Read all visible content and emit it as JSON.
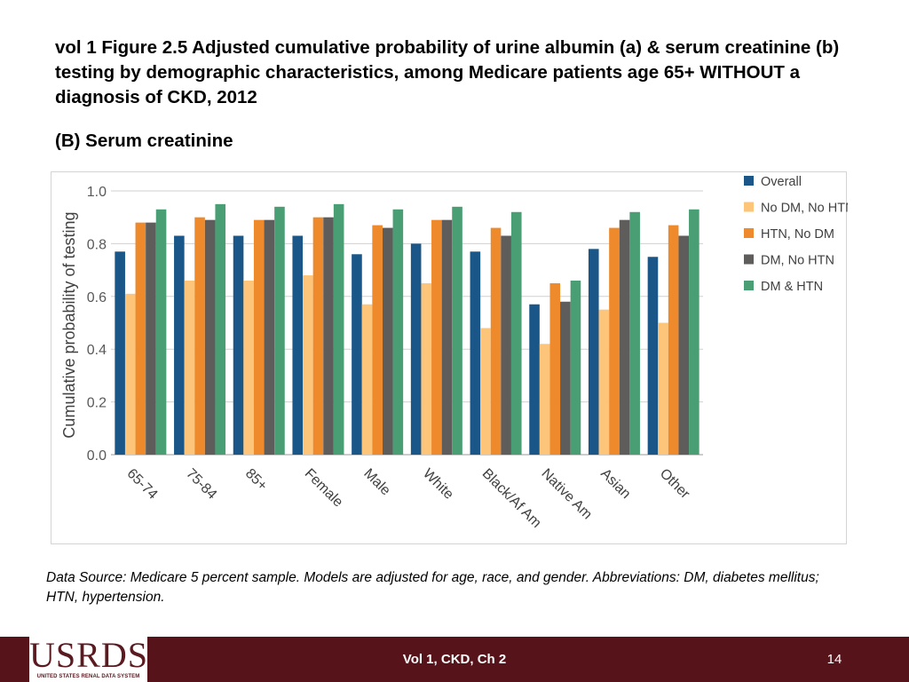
{
  "slide": {
    "title": "vol 1 Figure 2.5 Adjusted cumulative probability of urine albumin (a) & serum creatinine (b) testing by demographic characteristics, among Medicare patients age 65+ WITHOUT a diagnosis of CKD, 2012",
    "subtitle": "(B) Serum creatinine",
    "source_note": "Data Source: Medicare 5 percent sample. Models are adjusted for age, race, and gender. Abbreviations: DM, diabetes mellitus; HTN, hypertension.",
    "footer_label": "Vol 1, CKD, Ch 2",
    "page_number": "14",
    "logo_text": "USRDS",
    "logo_subtext": "UNITED STATES RENAL DATA SYSTEM"
  },
  "chart_data": {
    "type": "bar",
    "ylabel": "Cumulative probability of testing",
    "ylim": [
      0,
      1.0
    ],
    "yticks": [
      "0.0",
      "0.2",
      "0.4",
      "0.6",
      "0.8",
      "1.0"
    ],
    "grid": true,
    "legend_position": "right",
    "categories": [
      "65-74",
      "75-84",
      "85+",
      "Female",
      "Male",
      "White",
      "Black/Af Am",
      "Native Am",
      "Asian",
      "Other"
    ],
    "series": [
      {
        "name": "Overall",
        "color": "#1a5788",
        "values": [
          0.77,
          0.83,
          0.83,
          0.83,
          0.76,
          0.8,
          0.77,
          0.57,
          0.78,
          0.75
        ]
      },
      {
        "name": "No DM, No HTN",
        "color": "#fdc57a",
        "values": [
          0.61,
          0.66,
          0.66,
          0.68,
          0.57,
          0.65,
          0.48,
          0.42,
          0.55,
          0.5
        ]
      },
      {
        "name": "HTN, No DM",
        "color": "#ef8a2c",
        "values": [
          0.88,
          0.9,
          0.89,
          0.9,
          0.87,
          0.89,
          0.86,
          0.65,
          0.86,
          0.87
        ]
      },
      {
        "name": "DM, No HTN",
        "color": "#5e5d5b",
        "values": [
          0.88,
          0.89,
          0.89,
          0.9,
          0.86,
          0.89,
          0.83,
          0.58,
          0.89,
          0.83
        ]
      },
      {
        "name": "DM & HTN",
        "color": "#4a9e74",
        "values": [
          0.93,
          0.95,
          0.94,
          0.95,
          0.93,
          0.94,
          0.92,
          0.66,
          0.92,
          0.93
        ]
      }
    ]
  }
}
